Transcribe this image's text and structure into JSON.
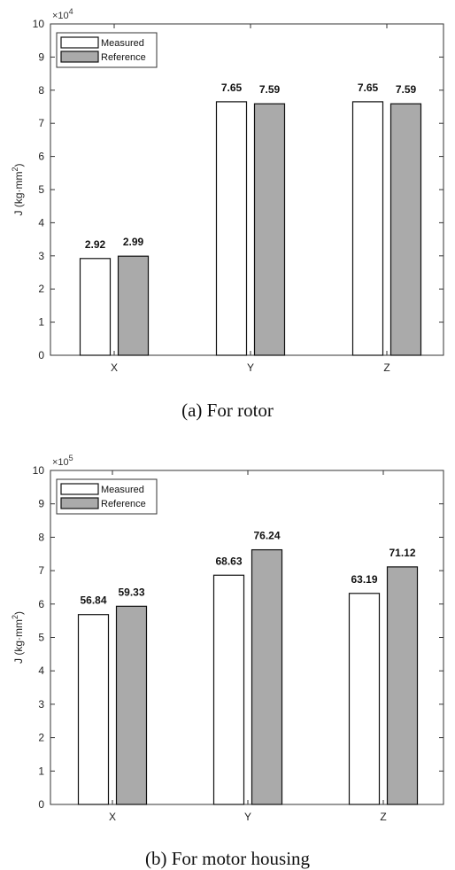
{
  "chart_data": [
    {
      "type": "bar",
      "caption": "(a)  For  rotor",
      "ylabel_main": "J (kg·mm",
      "ylabel_sup": "2",
      "ylabel_close": ")",
      "exponent_base": "×10",
      "exponent_power": "4",
      "categories": [
        "X",
        "Y",
        "Z"
      ],
      "ylim": [
        0,
        10
      ],
      "yticks": [
        "0",
        "1",
        "2",
        "3",
        "4",
        "5",
        "6",
        "7",
        "8",
        "9",
        "10"
      ],
      "series": [
        {
          "name": "Measured",
          "color": "#ffffff",
          "values": [
            2.92,
            7.65,
            7.65
          ],
          "labels": [
            "2.92",
            "7.65",
            "7.65"
          ]
        },
        {
          "name": "Reference",
          "color": "#aaaaaa",
          "values": [
            2.99,
            7.59,
            7.59
          ],
          "labels": [
            "2.99",
            "7.59",
            "7.59"
          ]
        }
      ],
      "legend": "top-left",
      "grid": false
    },
    {
      "type": "bar",
      "caption": "(b)  For  motor  housing",
      "ylabel_main": "J (kg·mm",
      "ylabel_sup": "2",
      "ylabel_close": ")",
      "exponent_base": "×10",
      "exponent_power": "5",
      "categories": [
        "X",
        "Y",
        "Z"
      ],
      "ylim": [
        0,
        10
      ],
      "yticks": [
        "0",
        "1",
        "2",
        "3",
        "4",
        "5",
        "6",
        "7",
        "8",
        "9",
        "10"
      ],
      "series": [
        {
          "name": "Measured",
          "color": "#ffffff",
          "values": [
            5.684,
            6.863,
            6.319
          ],
          "labels": [
            "56.84",
            "68.63",
            "63.19"
          ]
        },
        {
          "name": "Reference",
          "color": "#aaaaaa",
          "values": [
            5.933,
            7.624,
            7.112
          ],
          "labels": [
            "59.33",
            "76.24",
            "71.12"
          ]
        }
      ],
      "legend": "top-left",
      "grid": false
    }
  ]
}
